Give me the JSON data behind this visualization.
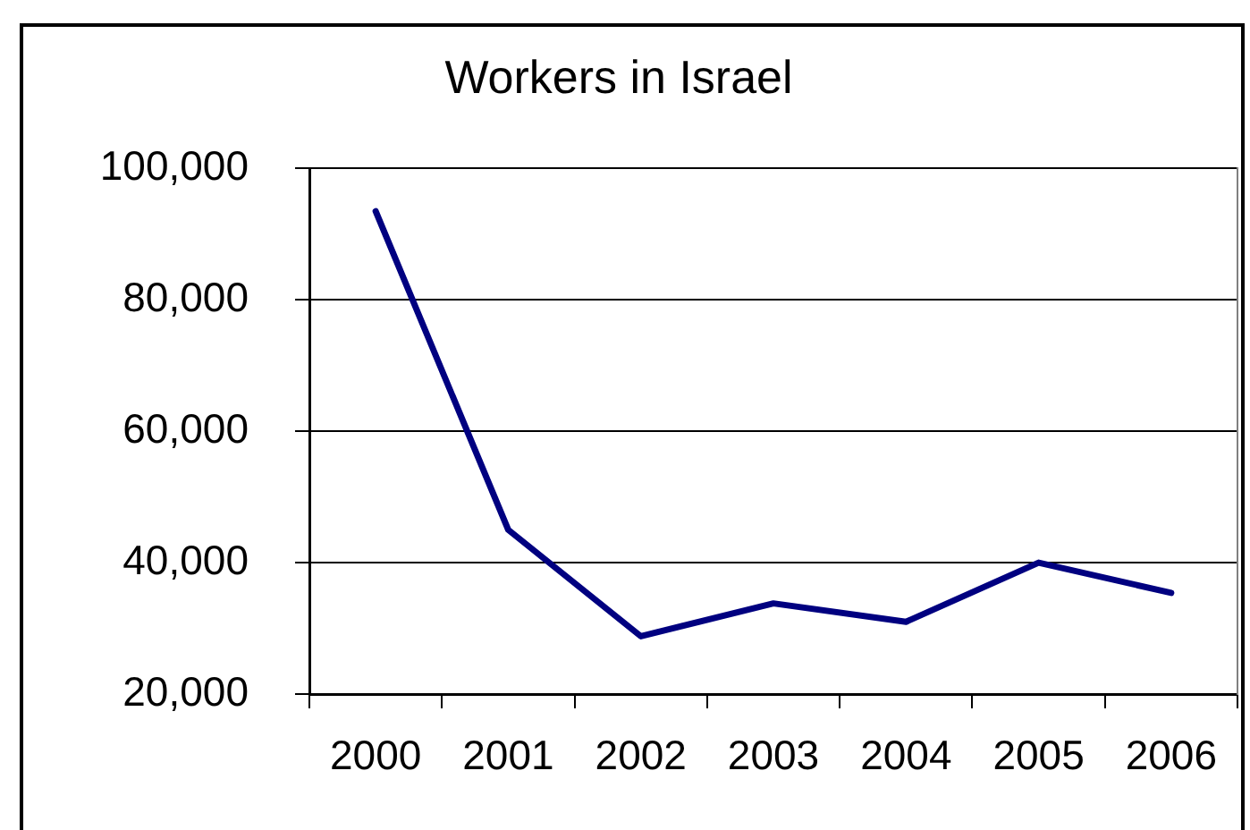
{
  "chart_data": {
    "type": "line",
    "title": "Workers in Israel",
    "categories": [
      "2000",
      "2001",
      "2002",
      "2003",
      "2004",
      "2005",
      "2006"
    ],
    "series": [
      {
        "color": "#000080",
        "values": [
          93500,
          45000,
          28800,
          33800,
          31000,
          40000,
          35400
        ]
      }
    ],
    "ylim": [
      20000,
      100000
    ],
    "yticks": [
      {
        "value": 20000,
        "label": "20,000"
      },
      {
        "value": 40000,
        "label": "40,000"
      },
      {
        "value": 60000,
        "label": "60,000"
      },
      {
        "value": 80000,
        "label": "80,000"
      },
      {
        "value": 100000,
        "label": "100,000"
      }
    ],
    "grid": "y",
    "legend": false,
    "marker": "none",
    "line_style": "solid"
  }
}
